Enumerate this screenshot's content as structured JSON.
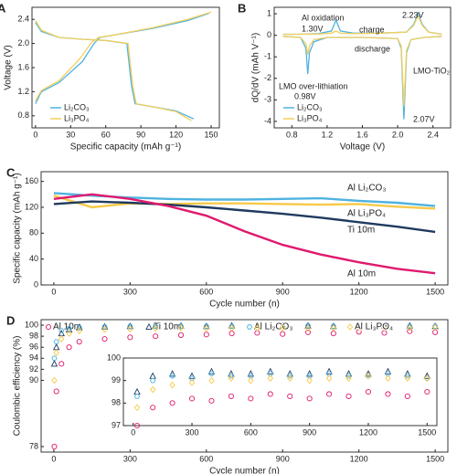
{
  "chart_data": [
    {
      "type": "line",
      "panel": "A",
      "xlabel": "Specific capacity (mAh g⁻¹)",
      "ylabel": "Voltage (V)",
      "xlim": [
        -3,
        157
      ],
      "xticks": [
        0,
        30,
        60,
        90,
        120,
        150
      ],
      "ylim": [
        0.6,
        2.6
      ],
      "yticks": [
        0.8,
        1.2,
        1.6,
        {
          "value": 2,
          "label": "2.0"
        },
        2.4
      ],
      "legend": "lower left",
      "series": [
        {
          "name": "Li₂CO₃",
          "color": "#4fb3e0",
          "curves": [
            {
              "x": [
                0,
                5,
                20,
                40,
                50,
                55,
                70,
                100,
                130,
                148
              ],
              "y": [
                1.0,
                1.2,
                1.35,
                1.7,
                2.0,
                2.1,
                2.15,
                2.25,
                2.38,
                2.5
              ]
            },
            {
              "x": [
                0,
                5,
                20,
                40,
                60,
                78,
                82,
                85,
                100,
                120,
                135
              ],
              "y": [
                2.35,
                2.2,
                2.1,
                2.07,
                2.05,
                2.0,
                1.3,
                1.0,
                0.95,
                0.88,
                0.75
              ]
            }
          ]
        },
        {
          "name": "Li₃PO₄",
          "color": "#f2cf5b",
          "curves": [
            {
              "x": [
                0,
                5,
                20,
                38,
                48,
                54,
                70,
                100,
                130,
                150
              ],
              "y": [
                1.05,
                1.22,
                1.38,
                1.75,
                2.02,
                2.1,
                2.15,
                2.26,
                2.4,
                2.52
              ]
            },
            {
              "x": [
                0,
                5,
                20,
                40,
                60,
                79,
                83,
                86,
                100,
                120,
                133
              ],
              "y": [
                2.38,
                2.22,
                2.1,
                2.07,
                2.05,
                2.0,
                1.3,
                1.0,
                0.95,
                0.87,
                0.72
              ]
            }
          ]
        }
      ]
    },
    {
      "type": "line",
      "panel": "B",
      "xlabel": "Voltage (V)",
      "ylabel": "dQ/dV (mAh V⁻¹)",
      "xlim": [
        0.6,
        2.6
      ],
      "xticks": [
        0.8,
        1.2,
        1.6,
        {
          "value": 2,
          "label": "2.0"
        },
        2.4
      ],
      "ylim": [
        -4.3,
        1.3
      ],
      "yticks": [
        -4,
        -3,
        -2,
        -1,
        0,
        1
      ],
      "legend": "lower left",
      "annotations": [
        "Al oxidation",
        "1.30V",
        "2.23V",
        "charge",
        "discharge",
        "LMO-TiO₂",
        "LMO over-lithiation",
        "0.98V",
        "2.07V"
      ],
      "series": [
        {
          "name": "Li₂CO₃",
          "color": "#4fb3e0",
          "curves": [
            {
              "x": [
                0.7,
                0.9,
                1.1,
                1.25,
                1.3,
                1.35,
                1.5,
                1.8,
                2.1,
                2.18,
                2.23,
                2.28,
                2.35,
                2.5
              ],
              "y": [
                0.05,
                0.05,
                0.08,
                0.2,
                0.7,
                0.2,
                0.1,
                0.1,
                0.15,
                0.5,
                1.0,
                0.5,
                0.15,
                0.05
              ]
            },
            {
              "x": [
                2.5,
                2.3,
                2.15,
                2.1,
                2.07,
                2.04,
                2.0,
                1.6,
                1.2,
                1.05,
                1.0,
                0.98,
                0.96,
                0.9,
                0.7
              ],
              "y": [
                -0.05,
                -0.1,
                -0.2,
                -0.8,
                -3.9,
                -0.6,
                -0.15,
                -0.1,
                -0.1,
                -0.3,
                -0.8,
                -1.8,
                -0.6,
                -0.1,
                -0.05
              ]
            }
          ]
        },
        {
          "name": "Li₃PO₄",
          "color": "#f2cf5b",
          "curves": [
            {
              "x": [
                0.7,
                0.9,
                1.1,
                1.25,
                1.3,
                1.35,
                1.5,
                1.8,
                2.1,
                2.18,
                2.23,
                2.28,
                2.35,
                2.5
              ],
              "y": [
                0.05,
                0.05,
                0.06,
                0.1,
                0.2,
                0.1,
                0.08,
                0.1,
                0.15,
                0.45,
                0.9,
                0.45,
                0.15,
                0.05
              ]
            },
            {
              "x": [
                2.5,
                2.3,
                2.15,
                2.1,
                2.07,
                2.04,
                2.0,
                1.6,
                1.2,
                1.05,
                1.0,
                0.98,
                0.96,
                0.9,
                0.7
              ],
              "y": [
                -0.05,
                -0.1,
                -0.2,
                -0.7,
                -3.3,
                -0.5,
                -0.15,
                -0.1,
                -0.1,
                -0.2,
                -0.5,
                -0.9,
                -0.4,
                -0.1,
                -0.05
              ]
            }
          ]
        }
      ]
    },
    {
      "type": "line",
      "panel": "C",
      "xlabel": "Cycle number (n)",
      "ylabel": "Specific capacity (mAh g⁻¹)",
      "xlim": [
        -50,
        1550
      ],
      "xticks": [
        0,
        300,
        600,
        900,
        1200,
        1500
      ],
      "ylim": [
        0,
        175
      ],
      "yticks": [
        0,
        40,
        80,
        120,
        160
      ],
      "series": [
        {
          "name": "Al Li₂CO₃",
          "color": "#4fb3e0",
          "curves": [
            {
              "x": [
                0,
                150,
                300,
                450,
                600,
                750,
                900,
                1050,
                1200,
                1350,
                1500
              ],
              "y": [
                142,
                138,
                135,
                133,
                132,
                132,
                133,
                134,
                130,
                127,
                122
              ]
            }
          ]
        },
        {
          "name": "Al Li₃PO₄",
          "color": "#f7c948",
          "curves": [
            {
              "x": [
                0,
                150,
                300,
                450,
                600,
                750,
                900,
                1050,
                1200,
                1350,
                1500
              ],
              "y": [
                138,
                120,
                126,
                125,
                126,
                126,
                125,
                124,
                125,
                121,
                118
              ]
            }
          ]
        },
        {
          "name": "Ti 10m",
          "color": "#1f3a5f",
          "curves": [
            {
              "x": [
                0,
                150,
                300,
                450,
                600,
                750,
                900,
                1050,
                1200,
                1350,
                1500
              ],
              "y": [
                125,
                129,
                127,
                124,
                120,
                115,
                110,
                104,
                97,
                90,
                82
              ]
            }
          ]
        },
        {
          "name": "Al 10m",
          "color": "#e0196e",
          "curves": [
            {
              "x": [
                0,
                150,
                300,
                450,
                600,
                750,
                900,
                1050,
                1200,
                1350,
                1500
              ],
              "y": [
                133,
                140,
                133,
                122,
                107,
                83,
                62,
                47,
                35,
                25,
                18
              ]
            }
          ]
        }
      ]
    },
    {
      "type": "scatter",
      "panel": "D",
      "xlabel": "Cycle number (n)",
      "ylabel": "Coulombic efficiency (%)",
      "xlim": [
        -50,
        1550
      ],
      "xticks": [
        0,
        300,
        600,
        900,
        1200,
        1500
      ],
      "ylim": [
        77,
        101
      ],
      "yticks": [
        78,
        90,
        92,
        94,
        96,
        98,
        100
      ],
      "x": [
        2,
        10,
        30,
        60,
        100,
        200,
        300,
        400,
        500,
        600,
        700,
        800,
        900,
        1000,
        1100,
        1200,
        1300,
        1400,
        1500
      ],
      "series": [
        {
          "name": "Al 10m",
          "color": "#e0196e",
          "marker": "circle",
          "values": [
            78,
            88,
            93,
            96,
            97,
            97.5,
            97.8,
            98,
            98.2,
            98.3,
            98.5,
            98.6,
            98.4,
            98.7,
            98.5,
            98.8,
            98.6,
            98.9,
            98.7
          ]
        },
        {
          "name": "Ti 10m",
          "color": "#1f3a5f",
          "marker": "triangle",
          "values": [
            93,
            96,
            98.5,
            99.2,
            99.6,
            99.7,
            99.8,
            99.9,
            99.9,
            99.8,
            99.9,
            99.9,
            99.9,
            99.9,
            99.8,
            99.9,
            99.9,
            99.9,
            99.8
          ]
        },
        {
          "name": "Al Li₂CO₃",
          "color": "#4fb3e0",
          "marker": "hexagon",
          "values": [
            94,
            97,
            99,
            99.4,
            99.6,
            99.7,
            99.8,
            99.8,
            99.8,
            99.8,
            99.8,
            99.8,
            99.8,
            99.9,
            99.8,
            99.8,
            99.9,
            99.8,
            99.8
          ]
        },
        {
          "name": "Al Li₃PO₄",
          "color": "#f7c948",
          "marker": "diamond",
          "values": [
            90,
            95,
            97.5,
            98.5,
            99,
            99.2,
            99.3,
            99.4,
            99.5,
            99.4,
            99.5,
            99.5,
            99.5,
            99.4,
            99.5,
            99.5,
            99.5,
            99.5,
            99.6
          ]
        }
      ]
    },
    {
      "type": "scatter",
      "xlim": [
        -50,
        1550
      ],
      "xticks": [
        0,
        300,
        600,
        900,
        1200,
        1500
      ],
      "ylim": [
        97,
        100
      ],
      "yticks": [
        97,
        98,
        99,
        100
      ],
      "x": [
        20,
        100,
        200,
        300,
        400,
        500,
        600,
        700,
        800,
        900,
        1000,
        1100,
        1200,
        1300,
        1400,
        1500
      ],
      "series": [
        {
          "color": "#e0196e",
          "marker": "circle",
          "values": [
            97,
            97.8,
            98,
            98.2,
            98.1,
            98.3,
            98.2,
            98.4,
            98.3,
            98.2,
            98.4,
            98.3,
            98.5,
            98.4,
            98.3,
            98.5
          ]
        },
        {
          "color": "#1f3a5f",
          "marker": "triangle",
          "values": [
            98.5,
            99.2,
            99.3,
            99.2,
            99.4,
            99.3,
            99.3,
            99.4,
            99.3,
            99.3,
            99.4,
            99.3,
            99.3,
            99.4,
            99.3,
            99.2
          ]
        },
        {
          "color": "#4fb3e0",
          "marker": "hexagon",
          "values": [
            98.3,
            99,
            99.2,
            99.1,
            99.3,
            99.2,
            99.2,
            99.3,
            99.2,
            99.2,
            99.3,
            99.2,
            99.2,
            99.3,
            99.2,
            99.1
          ]
        },
        {
          "color": "#f7c948",
          "marker": "diamond",
          "values": [
            97.8,
            98.6,
            98.8,
            98.9,
            99,
            99.1,
            99,
            99.1,
            99.1,
            99,
            99.1,
            99.1,
            99.2,
            99.1,
            99.1,
            99.1
          ]
        }
      ]
    }
  ]
}
